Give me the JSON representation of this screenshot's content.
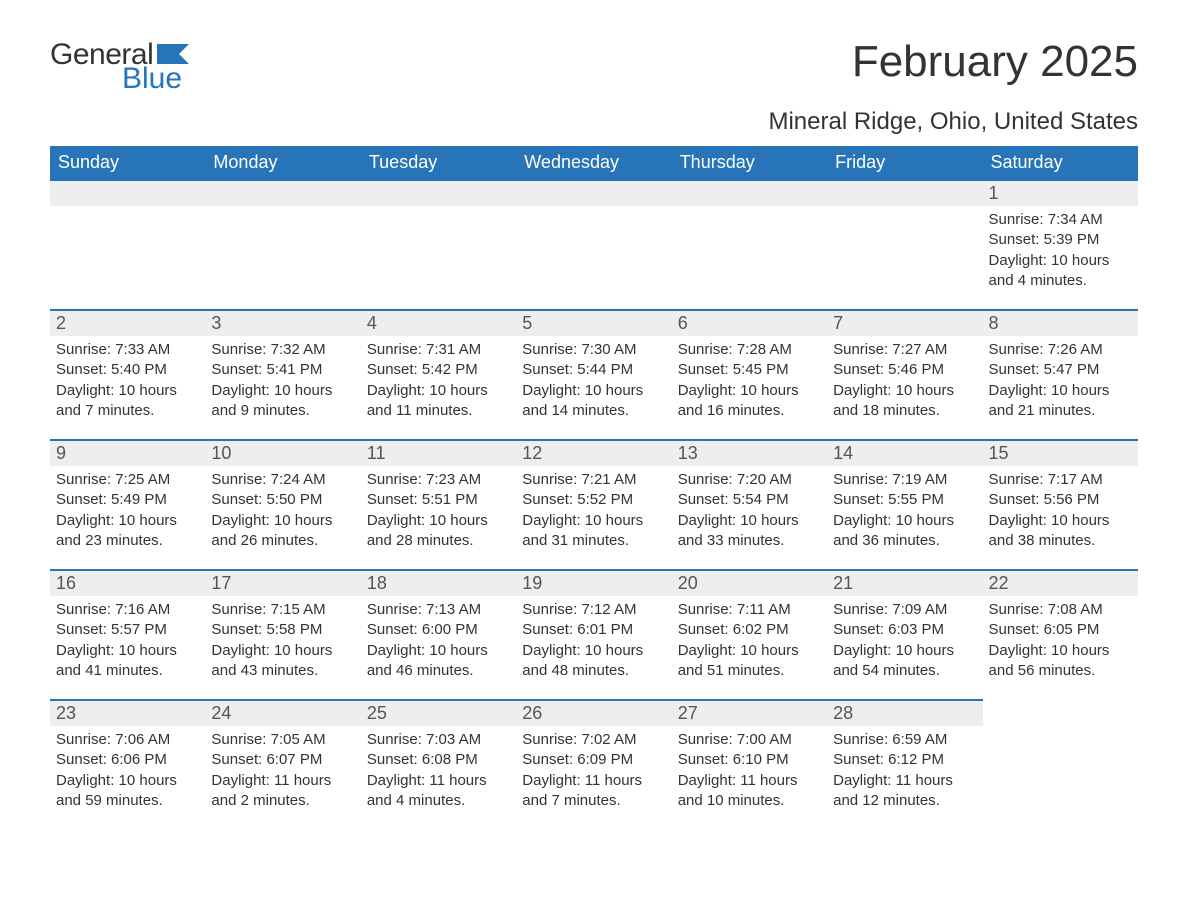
{
  "logo": {
    "line1": "General",
    "line2": "Blue"
  },
  "title": "February 2025",
  "location": "Mineral Ridge, Ohio, United States",
  "colors": {
    "header_bg": "#2874b8",
    "header_text": "#ffffff",
    "band_bg": "#eeeeee",
    "band_border": "#2874b8",
    "text": "#333333",
    "logo_blue": "#2874b8"
  },
  "weekdays": [
    "Sunday",
    "Monday",
    "Tuesday",
    "Wednesday",
    "Thursday",
    "Friday",
    "Saturday"
  ],
  "weeks": [
    [
      {
        "n": "",
        "sunrise": "",
        "sunset": "",
        "daylight": ""
      },
      {
        "n": "",
        "sunrise": "",
        "sunset": "",
        "daylight": ""
      },
      {
        "n": "",
        "sunrise": "",
        "sunset": "",
        "daylight": ""
      },
      {
        "n": "",
        "sunrise": "",
        "sunset": "",
        "daylight": ""
      },
      {
        "n": "",
        "sunrise": "",
        "sunset": "",
        "daylight": ""
      },
      {
        "n": "",
        "sunrise": "",
        "sunset": "",
        "daylight": ""
      },
      {
        "n": "1",
        "sunrise": "Sunrise: 7:34 AM",
        "sunset": "Sunset: 5:39 PM",
        "daylight": "Daylight: 10 hours and 4 minutes."
      }
    ],
    [
      {
        "n": "2",
        "sunrise": "Sunrise: 7:33 AM",
        "sunset": "Sunset: 5:40 PM",
        "daylight": "Daylight: 10 hours and 7 minutes."
      },
      {
        "n": "3",
        "sunrise": "Sunrise: 7:32 AM",
        "sunset": "Sunset: 5:41 PM",
        "daylight": "Daylight: 10 hours and 9 minutes."
      },
      {
        "n": "4",
        "sunrise": "Sunrise: 7:31 AM",
        "sunset": "Sunset: 5:42 PM",
        "daylight": "Daylight: 10 hours and 11 minutes."
      },
      {
        "n": "5",
        "sunrise": "Sunrise: 7:30 AM",
        "sunset": "Sunset: 5:44 PM",
        "daylight": "Daylight: 10 hours and 14 minutes."
      },
      {
        "n": "6",
        "sunrise": "Sunrise: 7:28 AM",
        "sunset": "Sunset: 5:45 PM",
        "daylight": "Daylight: 10 hours and 16 minutes."
      },
      {
        "n": "7",
        "sunrise": "Sunrise: 7:27 AM",
        "sunset": "Sunset: 5:46 PM",
        "daylight": "Daylight: 10 hours and 18 minutes."
      },
      {
        "n": "8",
        "sunrise": "Sunrise: 7:26 AM",
        "sunset": "Sunset: 5:47 PM",
        "daylight": "Daylight: 10 hours and 21 minutes."
      }
    ],
    [
      {
        "n": "9",
        "sunrise": "Sunrise: 7:25 AM",
        "sunset": "Sunset: 5:49 PM",
        "daylight": "Daylight: 10 hours and 23 minutes."
      },
      {
        "n": "10",
        "sunrise": "Sunrise: 7:24 AM",
        "sunset": "Sunset: 5:50 PM",
        "daylight": "Daylight: 10 hours and 26 minutes."
      },
      {
        "n": "11",
        "sunrise": "Sunrise: 7:23 AM",
        "sunset": "Sunset: 5:51 PM",
        "daylight": "Daylight: 10 hours and 28 minutes."
      },
      {
        "n": "12",
        "sunrise": "Sunrise: 7:21 AM",
        "sunset": "Sunset: 5:52 PM",
        "daylight": "Daylight: 10 hours and 31 minutes."
      },
      {
        "n": "13",
        "sunrise": "Sunrise: 7:20 AM",
        "sunset": "Sunset: 5:54 PM",
        "daylight": "Daylight: 10 hours and 33 minutes."
      },
      {
        "n": "14",
        "sunrise": "Sunrise: 7:19 AM",
        "sunset": "Sunset: 5:55 PM",
        "daylight": "Daylight: 10 hours and 36 minutes."
      },
      {
        "n": "15",
        "sunrise": "Sunrise: 7:17 AM",
        "sunset": "Sunset: 5:56 PM",
        "daylight": "Daylight: 10 hours and 38 minutes."
      }
    ],
    [
      {
        "n": "16",
        "sunrise": "Sunrise: 7:16 AM",
        "sunset": "Sunset: 5:57 PM",
        "daylight": "Daylight: 10 hours and 41 minutes."
      },
      {
        "n": "17",
        "sunrise": "Sunrise: 7:15 AM",
        "sunset": "Sunset: 5:58 PM",
        "daylight": "Daylight: 10 hours and 43 minutes."
      },
      {
        "n": "18",
        "sunrise": "Sunrise: 7:13 AM",
        "sunset": "Sunset: 6:00 PM",
        "daylight": "Daylight: 10 hours and 46 minutes."
      },
      {
        "n": "19",
        "sunrise": "Sunrise: 7:12 AM",
        "sunset": "Sunset: 6:01 PM",
        "daylight": "Daylight: 10 hours and 48 minutes."
      },
      {
        "n": "20",
        "sunrise": "Sunrise: 7:11 AM",
        "sunset": "Sunset: 6:02 PM",
        "daylight": "Daylight: 10 hours and 51 minutes."
      },
      {
        "n": "21",
        "sunrise": "Sunrise: 7:09 AM",
        "sunset": "Sunset: 6:03 PM",
        "daylight": "Daylight: 10 hours and 54 minutes."
      },
      {
        "n": "22",
        "sunrise": "Sunrise: 7:08 AM",
        "sunset": "Sunset: 6:05 PM",
        "daylight": "Daylight: 10 hours and 56 minutes."
      }
    ],
    [
      {
        "n": "23",
        "sunrise": "Sunrise: 7:06 AM",
        "sunset": "Sunset: 6:06 PM",
        "daylight": "Daylight: 10 hours and 59 minutes."
      },
      {
        "n": "24",
        "sunrise": "Sunrise: 7:05 AM",
        "sunset": "Sunset: 6:07 PM",
        "daylight": "Daylight: 11 hours and 2 minutes."
      },
      {
        "n": "25",
        "sunrise": "Sunrise: 7:03 AM",
        "sunset": "Sunset: 6:08 PM",
        "daylight": "Daylight: 11 hours and 4 minutes."
      },
      {
        "n": "26",
        "sunrise": "Sunrise: 7:02 AM",
        "sunset": "Sunset: 6:09 PM",
        "daylight": "Daylight: 11 hours and 7 minutes."
      },
      {
        "n": "27",
        "sunrise": "Sunrise: 7:00 AM",
        "sunset": "Sunset: 6:10 PM",
        "daylight": "Daylight: 11 hours and 10 minutes."
      },
      {
        "n": "28",
        "sunrise": "Sunrise: 6:59 AM",
        "sunset": "Sunset: 6:12 PM",
        "daylight": "Daylight: 11 hours and 12 minutes."
      },
      {
        "n": "",
        "sunrise": "",
        "sunset": "",
        "daylight": ""
      }
    ]
  ]
}
